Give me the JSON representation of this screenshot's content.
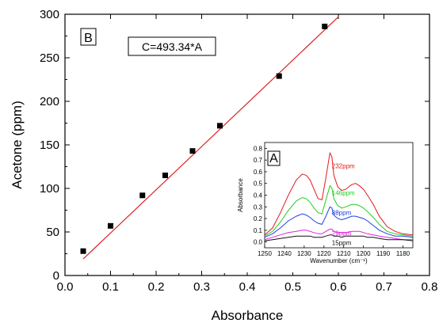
{
  "chart_data": [
    {
      "type": "scatter",
      "panel_label": "B",
      "xlabel": "Absorbance",
      "ylabel": "Acetone (ppm)",
      "xlim": [
        0.0,
        0.8
      ],
      "ylim": [
        0,
        300
      ],
      "x_ticks": [
        "0.0",
        "0.1",
        "0.2",
        "0.3",
        "0.4",
        "0.5",
        "0.6",
        "0.7",
        "0.8"
      ],
      "y_ticks": [
        "0",
        "50",
        "100",
        "150",
        "200",
        "250",
        "300"
      ],
      "points": [
        {
          "x": 0.04,
          "y": 28
        },
        {
          "x": 0.1,
          "y": 57
        },
        {
          "x": 0.17,
          "y": 92
        },
        {
          "x": 0.22,
          "y": 115
        },
        {
          "x": 0.28,
          "y": 143
        },
        {
          "x": 0.34,
          "y": 172
        },
        {
          "x": 0.47,
          "y": 229
        },
        {
          "x": 0.57,
          "y": 286
        }
      ],
      "fit": {
        "equation": "C=493.34*A",
        "x_range": [
          0.04,
          0.6
        ],
        "line_y_at_start": 19,
        "line_y_at_end": 297,
        "color": "#e02020"
      },
      "marker_color": "#000000"
    },
    {
      "type": "line",
      "panel_label": "A",
      "xlabel": "Wavenumber (cm⁻¹)",
      "ylabel": "Absorbance",
      "xlim": [
        1250,
        1175
      ],
      "ylim": [
        -0.05,
        0.85
      ],
      "x_ticks": [
        "1250",
        "1240",
        "1230",
        "1220",
        "1210",
        "1200",
        "1190",
        "1180"
      ],
      "y_ticks": [
        "0.0",
        "0.1",
        "0.2",
        "0.3",
        "0.4",
        "0.5",
        "0.6",
        "0.7",
        "0.8"
      ],
      "x": [
        1250,
        1246,
        1242,
        1238,
        1234,
        1231,
        1229,
        1227,
        1225,
        1223,
        1221,
        1219,
        1217,
        1216,
        1215,
        1213,
        1211,
        1209,
        1206,
        1204,
        1202,
        1200,
        1198,
        1195,
        1192,
        1188,
        1184,
        1180,
        1175
      ],
      "series": [
        {
          "name": "232ppm",
          "color": "#e41a1c",
          "values": [
            0.06,
            0.12,
            0.25,
            0.4,
            0.53,
            0.58,
            0.57,
            0.53,
            0.45,
            0.37,
            0.36,
            0.55,
            0.76,
            0.73,
            0.57,
            0.47,
            0.44,
            0.45,
            0.49,
            0.5,
            0.48,
            0.45,
            0.4,
            0.32,
            0.22,
            0.13,
            0.09,
            0.07,
            0.06
          ]
        },
        {
          "name": "146ppm",
          "color": "#22cc22",
          "values": [
            0.05,
            0.09,
            0.17,
            0.27,
            0.35,
            0.38,
            0.37,
            0.34,
            0.29,
            0.25,
            0.24,
            0.36,
            0.48,
            0.46,
            0.37,
            0.31,
            0.29,
            0.3,
            0.32,
            0.32,
            0.31,
            0.29,
            0.26,
            0.21,
            0.15,
            0.09,
            0.07,
            0.06,
            0.05
          ]
        },
        {
          "name": "88ppm",
          "color": "#2040e0",
          "values": [
            0.04,
            0.07,
            0.12,
            0.18,
            0.22,
            0.24,
            0.23,
            0.21,
            0.18,
            0.16,
            0.15,
            0.22,
            0.3,
            0.29,
            0.23,
            0.2,
            0.19,
            0.2,
            0.22,
            0.22,
            0.21,
            0.2,
            0.18,
            0.14,
            0.1,
            0.07,
            0.05,
            0.05,
            0.04
          ]
        },
        {
          "name": "29ppm",
          "color": "#e020e0",
          "values": [
            0.02,
            0.04,
            0.06,
            0.08,
            0.09,
            0.1,
            0.1,
            0.09,
            0.08,
            0.07,
            0.07,
            0.09,
            0.11,
            0.11,
            0.09,
            0.08,
            0.08,
            0.08,
            0.09,
            0.09,
            0.09,
            0.08,
            0.07,
            0.06,
            0.05,
            0.04,
            0.03,
            0.02,
            0.02
          ]
        },
        {
          "name": "15ppm",
          "color": "#111111",
          "values": [
            0.01,
            0.02,
            0.03,
            0.04,
            0.05,
            0.05,
            0.05,
            0.05,
            0.04,
            0.04,
            0.04,
            0.05,
            0.06,
            0.06,
            0.05,
            0.05,
            0.04,
            0.05,
            0.05,
            0.05,
            0.05,
            0.05,
            0.04,
            0.04,
            0.03,
            0.02,
            0.02,
            0.02,
            0.01
          ]
        }
      ]
    }
  ]
}
